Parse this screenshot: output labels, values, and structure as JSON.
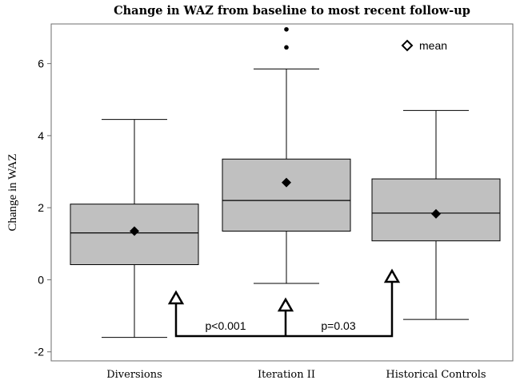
{
  "chart_data": {
    "type": "box",
    "title": "Change in WAZ from baseline to most recent follow-up",
    "xlabel": "",
    "ylabel": "Change in WAZ",
    "ylim": [
      -2.25,
      7.1
    ],
    "yticks": [
      -2,
      0,
      2,
      4,
      6
    ],
    "grid": false,
    "legend": {
      "position": "top-right",
      "label": "mean",
      "symbol": "open-diamond"
    },
    "categories": [
      "Diversions",
      "Iteration II",
      "Historical Controls"
    ],
    "boxes": [
      {
        "category": "Diversions",
        "whisker_low": -1.6,
        "q1": 0.42,
        "median": 1.3,
        "q3": 2.1,
        "whisker_high": 4.45,
        "mean": 1.35,
        "outliers": []
      },
      {
        "category": "Iteration II",
        "whisker_low": -0.1,
        "q1": 1.35,
        "median": 2.2,
        "q3": 3.35,
        "whisker_high": 5.85,
        "mean": 2.7,
        "outliers": [
          6.45,
          6.95
        ]
      },
      {
        "category": "Historical Controls",
        "whisker_low": -1.1,
        "q1": 1.08,
        "median": 1.85,
        "q3": 2.8,
        "whisker_high": 4.7,
        "mean": 1.83,
        "outliers": []
      }
    ],
    "comparisons": [
      {
        "from": "Diversions",
        "to": "Iteration II",
        "label": "p<0.001"
      },
      {
        "from": "Iteration II",
        "to": "Historical Controls",
        "label": "p=0.03"
      }
    ]
  },
  "colors": {
    "box_fill": "#c0c0c0",
    "line": "#000000",
    "frame": "#6d6d6d"
  }
}
